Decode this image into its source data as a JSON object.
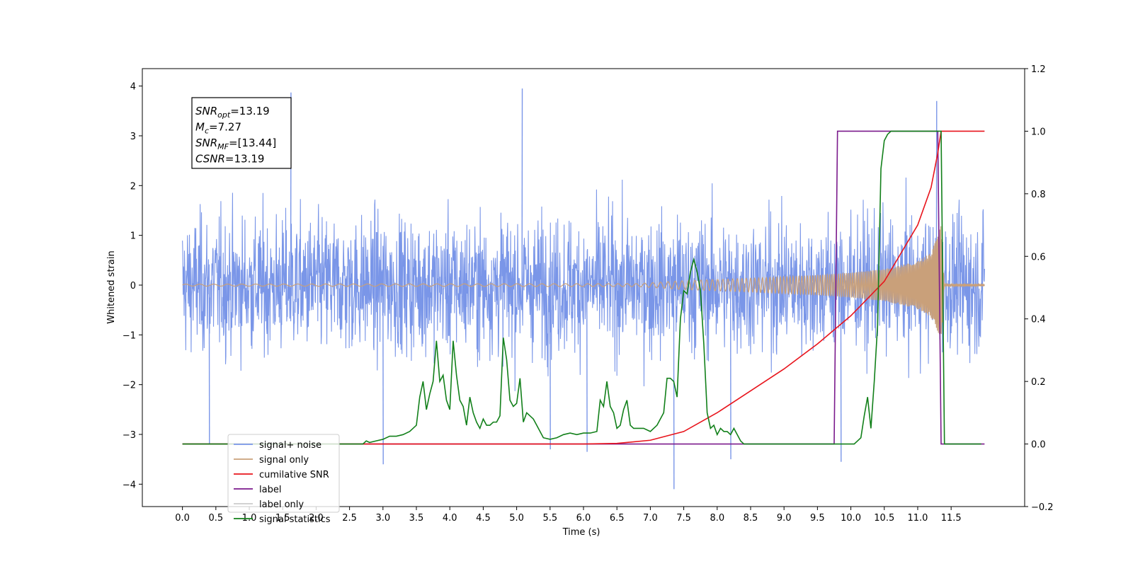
{
  "chart_data": {
    "type": "line",
    "title": "",
    "xlabel": "Time (s)",
    "ylabel_left": "Whitened strain",
    "ylabel_right": "",
    "xlim": [
      -0.6,
      12.6
    ],
    "ylim_left": [
      -4.45,
      4.35
    ],
    "ylim_right": [
      -0.2,
      1.2
    ],
    "x_ticks": [
      "0.0",
      "0.5",
      "1.0",
      "1.5",
      "2.0",
      "2.5",
      "3.0",
      "3.5",
      "4.0",
      "4.5",
      "5.0",
      "5.5",
      "6.0",
      "6.5",
      "7.0",
      "7.5",
      "8.0",
      "8.5",
      "9.0",
      "9.5",
      "10.0",
      "10.5",
      "11.0",
      "11.5"
    ],
    "y_ticks_left": [
      "4",
      "3",
      "2",
      "1",
      "0",
      "−1",
      "−2",
      "−3",
      "−4"
    ],
    "y_ticks_right": [
      "1.2",
      "1.0",
      "0.8",
      "0.6",
      "0.4",
      "0.2",
      "0.0",
      "−0.2"
    ],
    "grid": false,
    "legend_position": "lower-left",
    "stats_box": {
      "lines": [
        {
          "sym": "SNR",
          "sub": "opt",
          "val": "=13.19"
        },
        {
          "sym": "M",
          "sub": "c",
          "val": "=7.27"
        },
        {
          "sym": "SNR",
          "sub": "MF",
          "val": "=[13.44]"
        },
        {
          "sym": "CSNR",
          "sub": "",
          "val": "=13.19"
        }
      ]
    },
    "series": [
      {
        "name": "signal+ noise",
        "axis": "left",
        "color": "#7a96e8",
        "description": "whitened noise plus signal, amplitude envelope about ±2.5 with spikes to about ±4",
        "x_range": [
          0.0,
          12.0
        ],
        "spikes": [
          [
            1.62,
            3.87
          ],
          [
            5.08,
            3.95
          ],
          [
            11.28,
            3.7
          ],
          [
            7.35,
            -4.1
          ],
          [
            3.0,
            -3.6
          ],
          [
            8.2,
            -3.5
          ],
          [
            9.85,
            -3.55
          ],
          [
            0.4,
            -3.2
          ],
          [
            5.5,
            -3.3
          ],
          [
            6.05,
            -3.35
          ]
        ]
      },
      {
        "name": "signal only",
        "axis": "left",
        "color": "#c9a07a",
        "description": "chirp signal growing in amplitude until merger near 11.35 s",
        "envelope": {
          "x": [
            0.0,
            6.8,
            7.5,
            8.5,
            9.5,
            10.0,
            10.5,
            11.0,
            11.2,
            11.3,
            11.35,
            11.4,
            12.0
          ],
          "amplitude": [
            0.02,
            0.03,
            0.09,
            0.14,
            0.2,
            0.25,
            0.32,
            0.48,
            0.65,
            1.0,
            1.2,
            0.02,
            0.02
          ]
        }
      },
      {
        "name": "cumilative SNR",
        "axis": "right",
        "color": "#e8141c",
        "x": [
          0.0,
          6.0,
          6.5,
          7.0,
          7.5,
          8.0,
          8.5,
          9.0,
          9.5,
          10.0,
          10.5,
          11.0,
          11.2,
          11.3,
          11.35,
          12.0
        ],
        "y": [
          0.0,
          0.0,
          0.002,
          0.012,
          0.04,
          0.1,
          0.17,
          0.24,
          0.32,
          0.41,
          0.52,
          0.7,
          0.82,
          0.93,
          1.0,
          1.0
        ]
      },
      {
        "name": "label",
        "axis": "right",
        "color": "#7b1a8c",
        "x": [
          0.0,
          9.75,
          9.8,
          11.3,
          11.35,
          12.0
        ],
        "y": [
          0.0,
          0.0,
          1.0,
          1.0,
          0.0,
          0.0
        ]
      },
      {
        "name": "label only",
        "axis": "right",
        "color": "#cccccc",
        "x": [],
        "y": []
      },
      {
        "name": "signal statistics",
        "axis": "right",
        "color": "#12801a",
        "x": [
          0.0,
          2.7,
          2.75,
          2.8,
          2.9,
          3.0,
          3.1,
          3.2,
          3.3,
          3.4,
          3.5,
          3.55,
          3.6,
          3.65,
          3.7,
          3.75,
          3.8,
          3.85,
          3.9,
          3.95,
          4.0,
          4.05,
          4.1,
          4.15,
          4.2,
          4.25,
          4.3,
          4.35,
          4.4,
          4.45,
          4.5,
          4.55,
          4.6,
          4.65,
          4.7,
          4.75,
          4.8,
          4.85,
          4.9,
          4.95,
          5.0,
          5.05,
          5.1,
          5.15,
          5.2,
          5.25,
          5.3,
          5.35,
          5.4,
          5.5,
          5.6,
          5.7,
          5.8,
          5.9,
          6.0,
          6.1,
          6.2,
          6.25,
          6.3,
          6.35,
          6.4,
          6.45,
          6.5,
          6.55,
          6.6,
          6.65,
          6.7,
          6.75,
          6.8,
          6.9,
          7.0,
          7.1,
          7.2,
          7.25,
          7.3,
          7.35,
          7.4,
          7.45,
          7.5,
          7.55,
          7.6,
          7.65,
          7.7,
          7.75,
          7.8,
          7.85,
          7.9,
          7.95,
          8.0,
          8.05,
          8.1,
          8.15,
          8.2,
          8.25,
          8.3,
          8.35,
          8.4,
          8.45,
          8.5,
          8.6,
          8.8,
          9.0,
          9.5,
          10.0,
          10.05,
          10.1,
          10.15,
          10.2,
          10.25,
          10.3,
          10.35,
          10.4,
          10.45,
          10.5,
          10.55,
          10.6,
          10.7,
          11.0,
          11.25,
          11.3,
          11.35,
          11.4,
          11.5,
          11.6,
          11.7,
          11.8,
          11.9,
          11.95
        ],
        "y": [
          0.0,
          0.0,
          0.01,
          0.005,
          0.01,
          0.015,
          0.025,
          0.025,
          0.03,
          0.04,
          0.06,
          0.15,
          0.2,
          0.11,
          0.16,
          0.2,
          0.33,
          0.2,
          0.22,
          0.14,
          0.11,
          0.33,
          0.22,
          0.14,
          0.12,
          0.06,
          0.15,
          0.1,
          0.07,
          0.05,
          0.08,
          0.06,
          0.06,
          0.07,
          0.07,
          0.09,
          0.34,
          0.27,
          0.14,
          0.12,
          0.13,
          0.21,
          0.07,
          0.1,
          0.09,
          0.08,
          0.06,
          0.04,
          0.02,
          0.015,
          0.02,
          0.03,
          0.035,
          0.03,
          0.035,
          0.035,
          0.04,
          0.14,
          0.12,
          0.2,
          0.12,
          0.1,
          0.05,
          0.06,
          0.11,
          0.14,
          0.06,
          0.05,
          0.05,
          0.05,
          0.04,
          0.06,
          0.1,
          0.21,
          0.21,
          0.2,
          0.15,
          0.4,
          0.49,
          0.48,
          0.55,
          0.59,
          0.55,
          0.49,
          0.32,
          0.1,
          0.05,
          0.06,
          0.03,
          0.05,
          0.04,
          0.04,
          0.03,
          0.05,
          0.03,
          0.01,
          0.0,
          0.0,
          0.0,
          0.0,
          0.0,
          0.0,
          0.0,
          0.0,
          0.0,
          0.01,
          0.02,
          0.09,
          0.15,
          0.05,
          0.2,
          0.38,
          0.88,
          0.97,
          0.99,
          1.0,
          1.0,
          1.0,
          1.0,
          1.0,
          1.0,
          0.0,
          0.0,
          0.0,
          0.0,
          0.0,
          0.0,
          0.0
        ]
      }
    ]
  }
}
